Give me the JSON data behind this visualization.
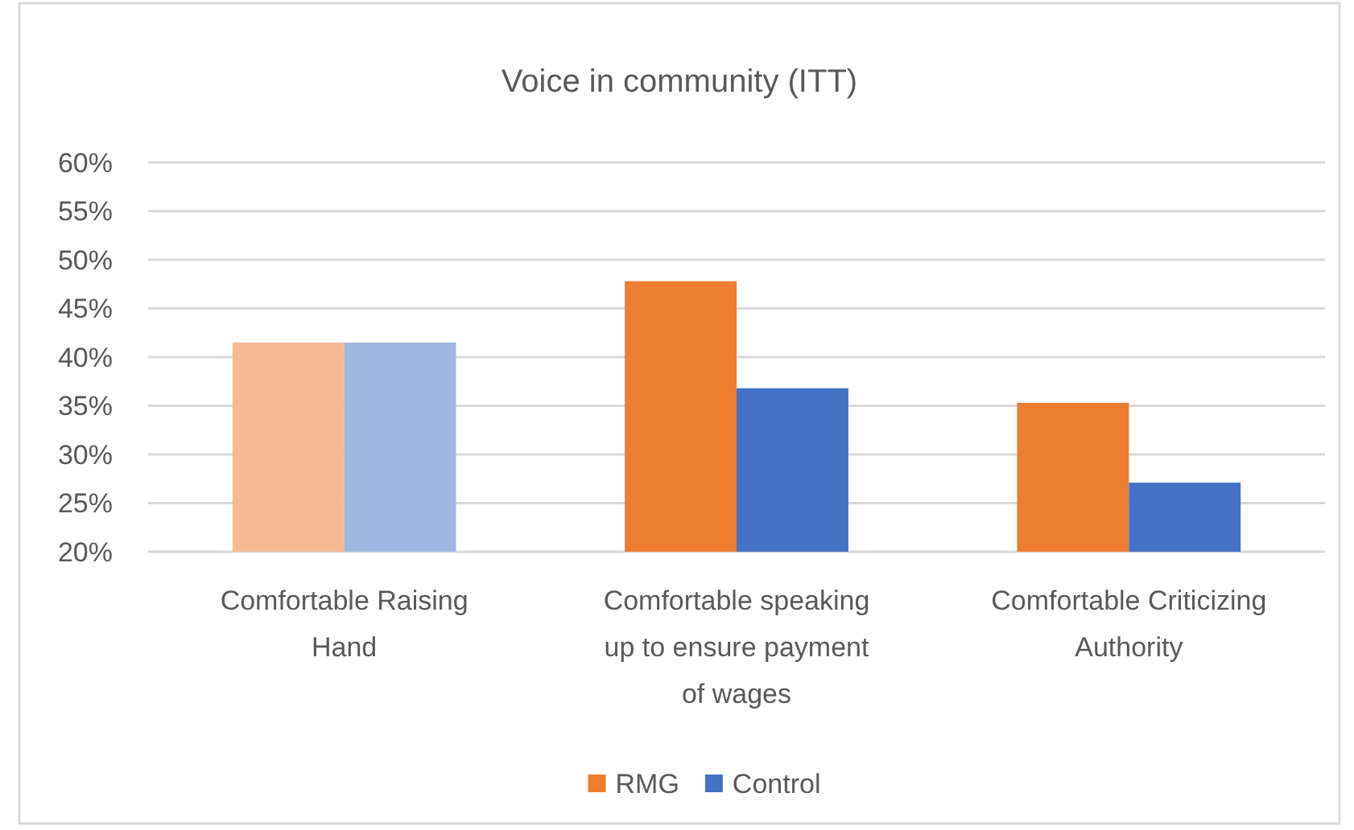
{
  "chart_data": {
    "type": "bar",
    "title": "Voice in community (ITT)",
    "categories": [
      "Comfortable Raising Hand",
      "Comfortable speaking up to ensure payment of wages",
      "Comfortable Criticizing Authority"
    ],
    "series": [
      {
        "name": "RMG",
        "color": "#ed7d31",
        "colors": [
          "#f4bb93",
          "#ed7d31",
          "#ed7d31"
        ],
        "values": [
          41.5,
          47.8,
          35.3
        ]
      },
      {
        "name": "Control",
        "color": "#4472c4",
        "colors": [
          "#a0b6e0",
          "#4472c4",
          "#4472c4"
        ],
        "values": [
          41.5,
          36.8,
          27.1
        ]
      }
    ],
    "ylim": [
      20,
      60
    ],
    "yticks": [
      {
        "value": 20,
        "label": "20%"
      },
      {
        "value": 25,
        "label": "25%"
      },
      {
        "value": 30,
        "label": "30%"
      },
      {
        "value": 35,
        "label": "35%"
      },
      {
        "value": 40,
        "label": "40%"
      },
      {
        "value": 45,
        "label": "45%"
      },
      {
        "value": 50,
        "label": "50%"
      },
      {
        "value": 55,
        "label": "55%"
      },
      {
        "value": 60,
        "label": "60%"
      }
    ],
    "grid": "y",
    "legend": "bottom"
  }
}
